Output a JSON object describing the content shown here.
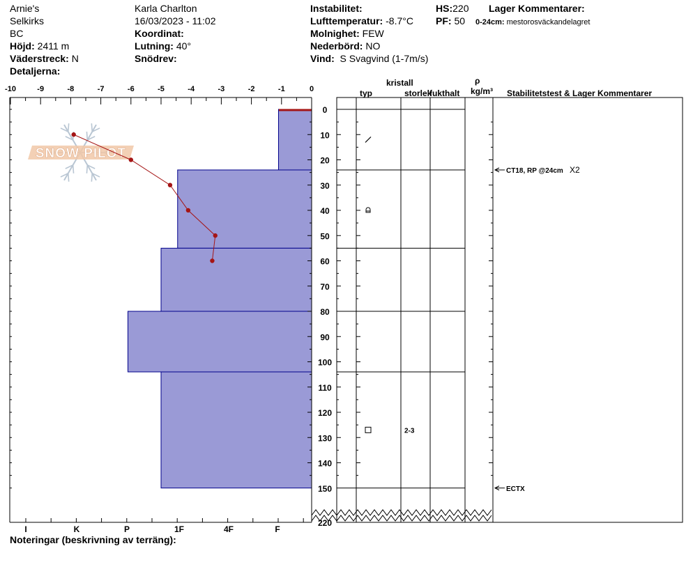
{
  "header": {
    "location_name": "Arnie's",
    "range": "Selkirks",
    "region": "BC",
    "elevation_label": "Höjd:",
    "elevation_value": "2411 m",
    "aspect_label": "Väderstreck:",
    "aspect_value": "N",
    "details_label": "Detaljerna:",
    "observer": "Karla Charlton",
    "datetime": "16/03/2023 - 11:02",
    "coordinate_label": "Koordinat:",
    "coordinate_value": "",
    "slope_label": "Lutning:",
    "slope_value": "40°",
    "drift_label": "Snödrev:",
    "drift_value": "",
    "instability_label": "Instabilitet:",
    "instability_value": "",
    "air_temp_label": "Lufttemperatur:",
    "air_temp_value": "-8.7°C",
    "sky_label": "Molnighet:",
    "sky_value": "FEW",
    "precip_label": "Nederbörd:",
    "precip_value": "NO",
    "wind_label": "Vind:",
    "wind_value": "S Svagvind (1-7m/s)",
    "hs_label": "HS:",
    "hs_value": "220",
    "pf_label": "PF:",
    "pf_value": "50",
    "layer_comments_label": "Lager Kommentarer:",
    "layer_comment_range": "0-24cm:",
    "layer_comment_text": "mestorosväckandelagret"
  },
  "footer": {
    "notes_label": "Noteringar (beskrivning av terräng):"
  },
  "logo": {
    "text": "SNOW PILOT"
  },
  "colors": {
    "hardness_fill": "#9a9ad6",
    "hardness_stroke": "#00008b",
    "temperature_line": "#a51515",
    "surface_bar": "#a51515"
  },
  "chart_data": {
    "type": "snow-profile",
    "temperature_axis": {
      "ticks": [
        "-10",
        "-9",
        "-8",
        "-7",
        "-6",
        "-5",
        "-4",
        "-3",
        "-2",
        "-1",
        "0"
      ],
      "range": [
        -10,
        0
      ]
    },
    "depth_axis": {
      "ticks": [
        "0",
        "10",
        "20",
        "30",
        "40",
        "50",
        "60",
        "70",
        "80",
        "90",
        "100",
        "110",
        "120",
        "130",
        "140",
        "150",
        "220"
      ],
      "range": [
        0,
        220
      ],
      "axis_break": [
        150,
        220
      ]
    },
    "hardness_axis": {
      "labels": [
        "I",
        "K",
        "P",
        "1F",
        "4F",
        "F"
      ]
    },
    "temperature_profile": [
      {
        "depth": 10,
        "temp": -7.9
      },
      {
        "depth": 20,
        "temp": -6.0
      },
      {
        "depth": 30,
        "temp": -4.7
      },
      {
        "depth": 40,
        "temp": -4.1
      },
      {
        "depth": 50,
        "temp": -3.2
      },
      {
        "depth": 60,
        "temp": -3.3
      }
    ],
    "layers": [
      {
        "top": 0,
        "bottom": 24,
        "hardness_value": -1.1
      },
      {
        "top": 24,
        "bottom": 55,
        "hardness_value": -4.45
      },
      {
        "top": 55,
        "bottom": 80,
        "hardness_value": -5.0
      },
      {
        "top": 80,
        "bottom": 104,
        "hardness_value": -6.1
      },
      {
        "top": 104,
        "bottom": 150,
        "hardness_value": -5.0
      }
    ],
    "layer_boundaries": [
      0,
      24,
      55,
      80,
      104,
      150
    ],
    "grain_symbols": [
      {
        "depth": 12,
        "symbol": "slash",
        "size": ""
      },
      {
        "depth": 40,
        "symbol": "rounded-facet",
        "size": ""
      },
      {
        "depth": 127,
        "symbol": "square",
        "size": "2-3"
      }
    ],
    "columns": {
      "crystal_label": "kristall",
      "type_label": "typ",
      "size_label": "storlek",
      "moisture_label": "fukthalt",
      "density_symbol": "ρ",
      "density_unit": "kg/m³",
      "comments_label": "Stabilitetstest & Lager Kommentarer"
    },
    "stability_tests": [
      {
        "depth": 24,
        "result": "CT18, RP @24cm",
        "multiplier": "X2"
      },
      {
        "depth": 150,
        "result": "ECTX",
        "multiplier": ""
      }
    ]
  }
}
